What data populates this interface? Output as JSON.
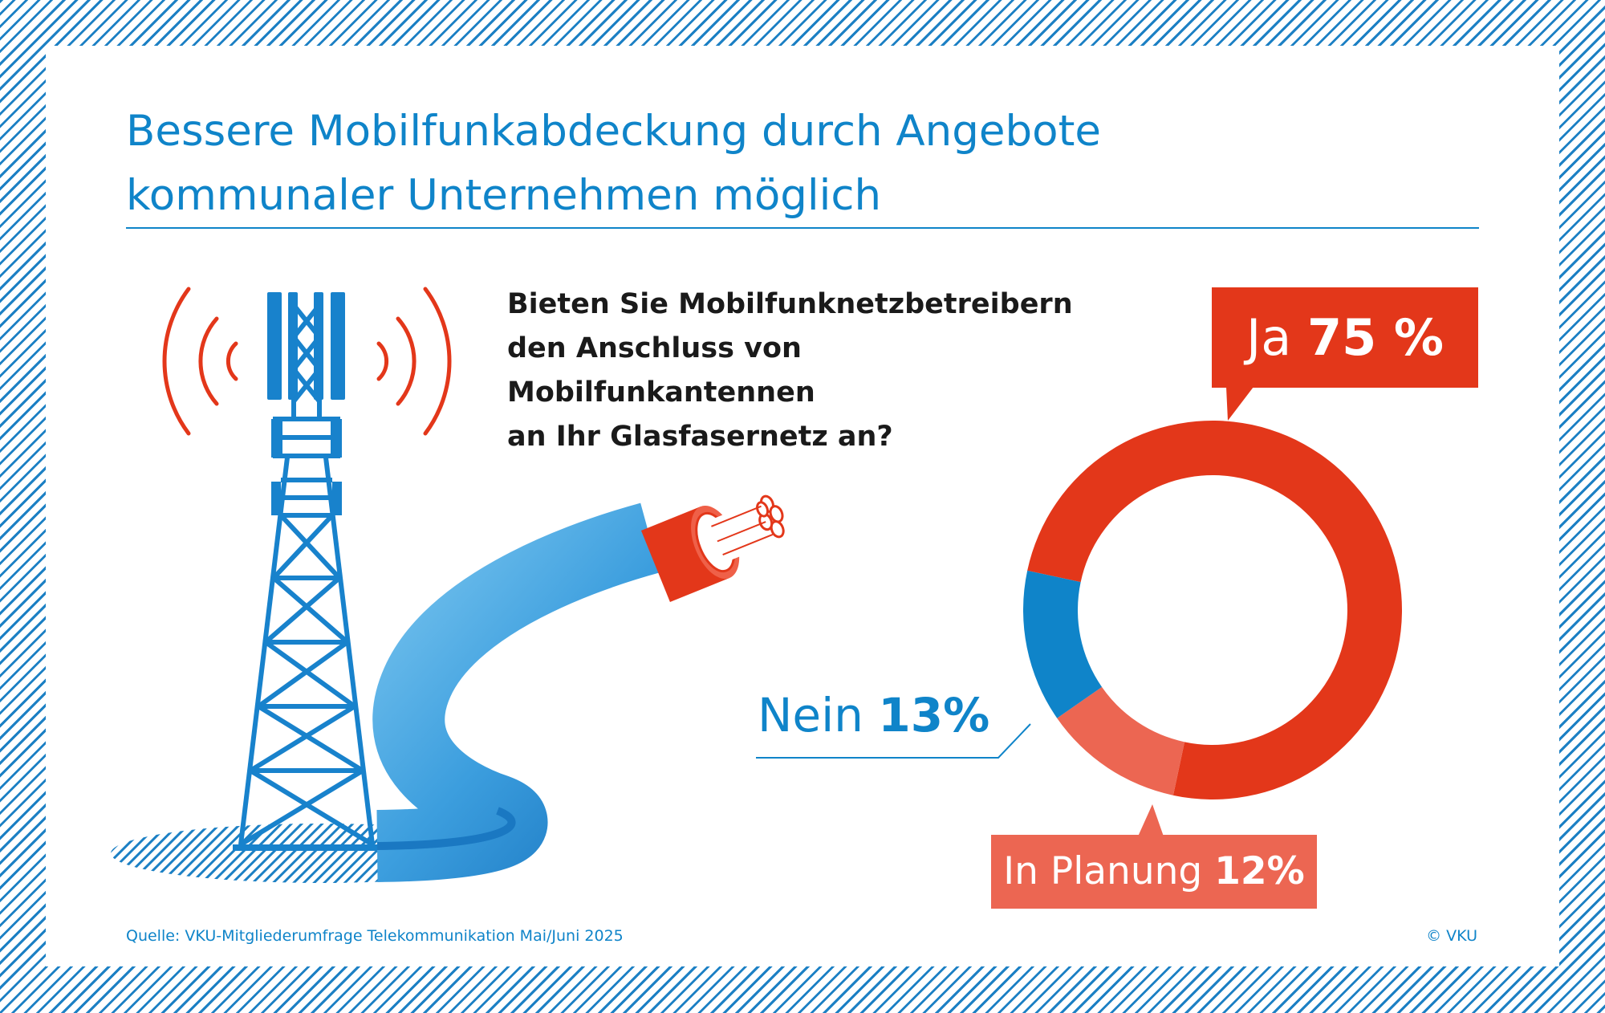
{
  "title_line1": "Bessere Mobilfunkabdeckung durch Angebote",
  "title_line2": "kommunaler Unternehmen möglich",
  "question_line1": "Bieten Sie Mobilfunknetzbetreibern",
  "question_line2": "den Anschluss von Mobilfunkantennen",
  "question_line3": "an Ihr Glasfasernetz an?",
  "source": "Quelle: VKU-Mitgliederumfrage Telekommunikation Mai/Juni 2025",
  "copyright": "© VKU",
  "icons": [
    "cell-tower-icon",
    "signal-waves-icon",
    "fiber-cable-icon"
  ],
  "colors": {
    "ja": "#e3371a",
    "nein": "#0f84c9",
    "planung": "#ec6652",
    "accent_blue": "#0f84c9"
  },
  "chart_data": {
    "type": "pie",
    "title": "Bieten Sie Mobilfunknetzbetreibern den Anschluss von Mobilfunkantennen an Ihr Glasfasernetz an?",
    "unit": "%",
    "categories": [
      "Ja",
      "In Planung",
      "Nein"
    ],
    "values": [
      75,
      12,
      13
    ],
    "labels": {
      "ja": {
        "name": "Ja",
        "value": "75 %"
      },
      "planung": {
        "name": "In Planung",
        "value": "12%"
      },
      "nein": {
        "name": "Nein",
        "value": "13%"
      }
    }
  }
}
